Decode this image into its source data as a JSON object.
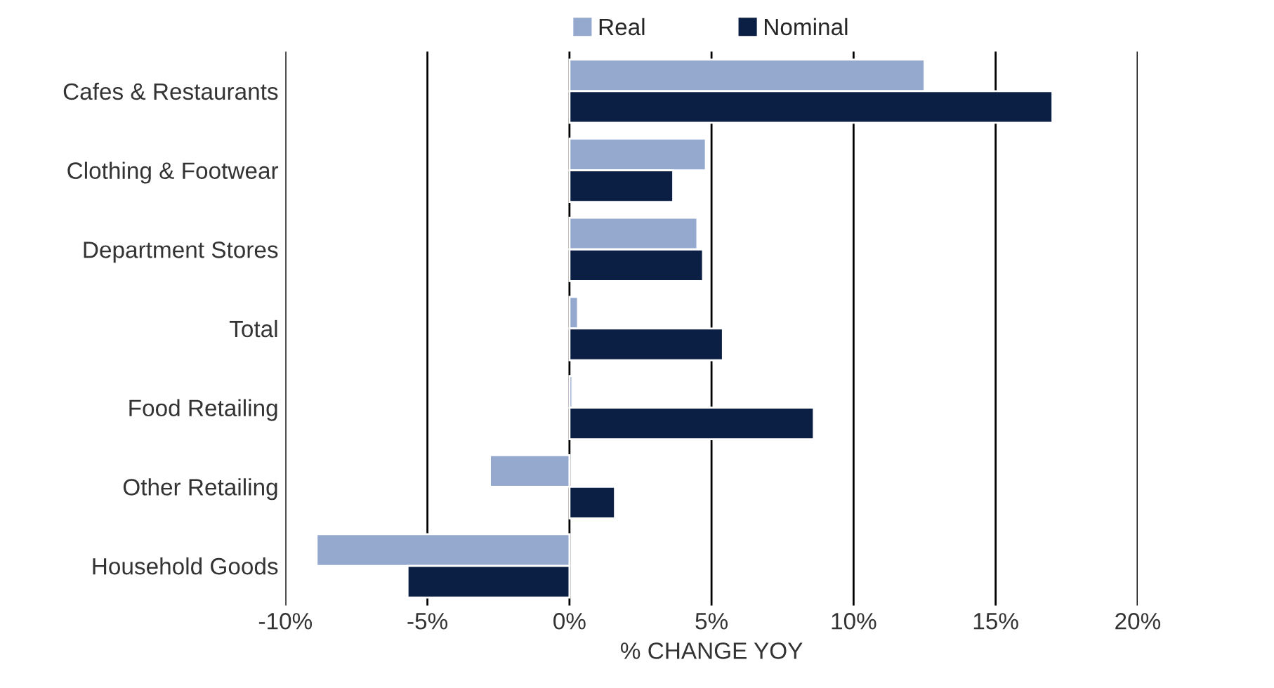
{
  "chart_data": {
    "type": "bar",
    "orientation": "horizontal",
    "xlabel": "% CHANGE YOY",
    "categories": [
      "Cafes & Restaurants",
      "Clothing & Footwear",
      "Department Stores",
      "Total",
      "Food Retailing",
      "Other Retailing",
      "Household Goods"
    ],
    "series": [
      {
        "name": "Real",
        "color": "#95a9cf",
        "values": [
          12.5,
          4.8,
          4.5,
          0.3,
          0.1,
          -2.8,
          -8.9
        ]
      },
      {
        "name": "Nominal",
        "color": "#0b1f45",
        "values": [
          17.0,
          3.65,
          4.7,
          5.4,
          8.6,
          1.6,
          -5.7
        ]
      }
    ],
    "xlim": [
      -10,
      20
    ],
    "xticks": [
      {
        "value": -10,
        "label": "-10%"
      },
      {
        "value": -5,
        "label": "-5%"
      },
      {
        "value": 0,
        "label": "0%"
      },
      {
        "value": 5,
        "label": "5%"
      },
      {
        "value": 10,
        "label": "10%"
      },
      {
        "value": 15,
        "label": "15%"
      },
      {
        "value": 20,
        "label": "20%"
      }
    ],
    "grid": "x",
    "legend": "top"
  }
}
